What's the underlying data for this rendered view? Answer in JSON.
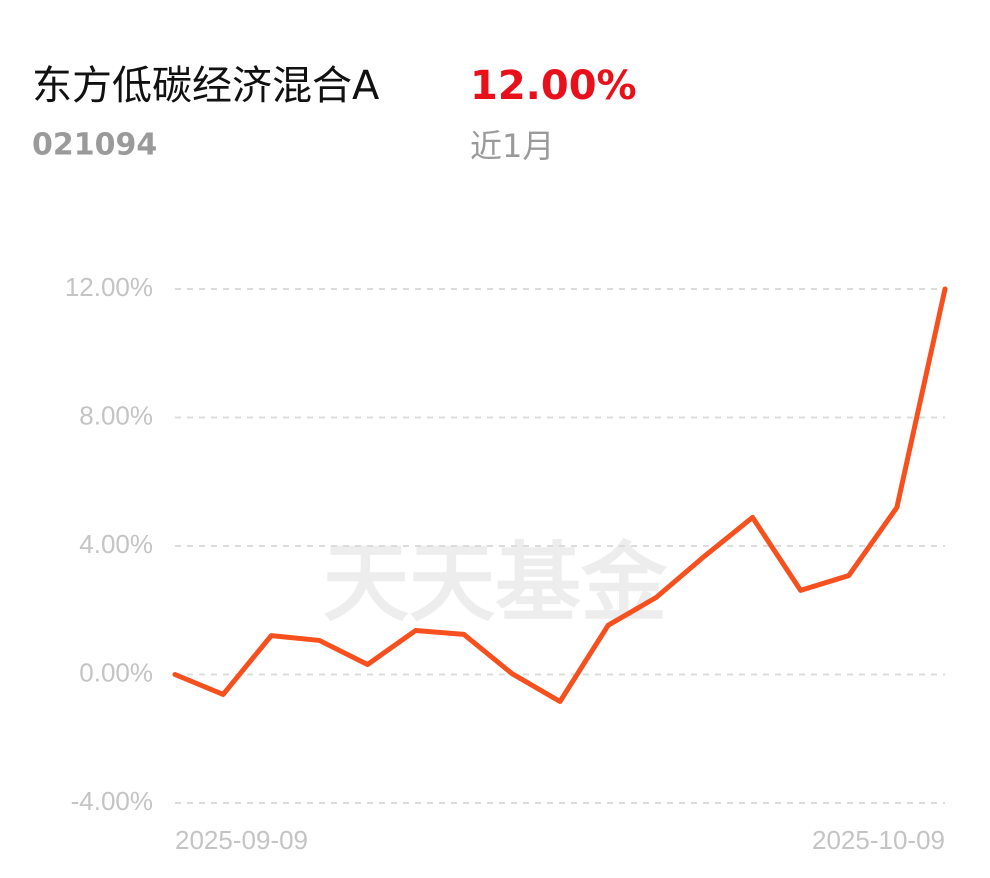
{
  "header": {
    "title": "东方低碳经济混合A",
    "return": "12.00%",
    "code": "021094",
    "period": "近1月",
    "watermark": "天天基金"
  },
  "chart_data": {
    "type": "line",
    "categories": [
      "2025-09-09",
      null,
      null,
      null,
      null,
      null,
      null,
      null,
      null,
      null,
      null,
      null,
      null,
      null,
      null,
      null,
      "2025-10-09"
    ],
    "series": [
      {
        "name": "东方低碳经济混合A",
        "color": "#f5501e",
        "values": [
          0.0,
          -0.62,
          1.21,
          1.06,
          0.31,
          1.37,
          1.25,
          0.03,
          -0.84,
          1.53,
          2.4,
          3.68,
          4.89,
          2.62,
          3.08,
          5.2,
          12.0
        ]
      }
    ],
    "ylim": [
      -4,
      12
    ],
    "yticks": [
      {
        "value": -4,
        "label": "-4.00%"
      },
      {
        "value": 0,
        "label": "0.00%"
      },
      {
        "value": 4,
        "label": "4.00%"
      },
      {
        "value": 8,
        "label": "8.00%"
      },
      {
        "value": 12,
        "label": "12.00%"
      }
    ],
    "grid": true
  }
}
